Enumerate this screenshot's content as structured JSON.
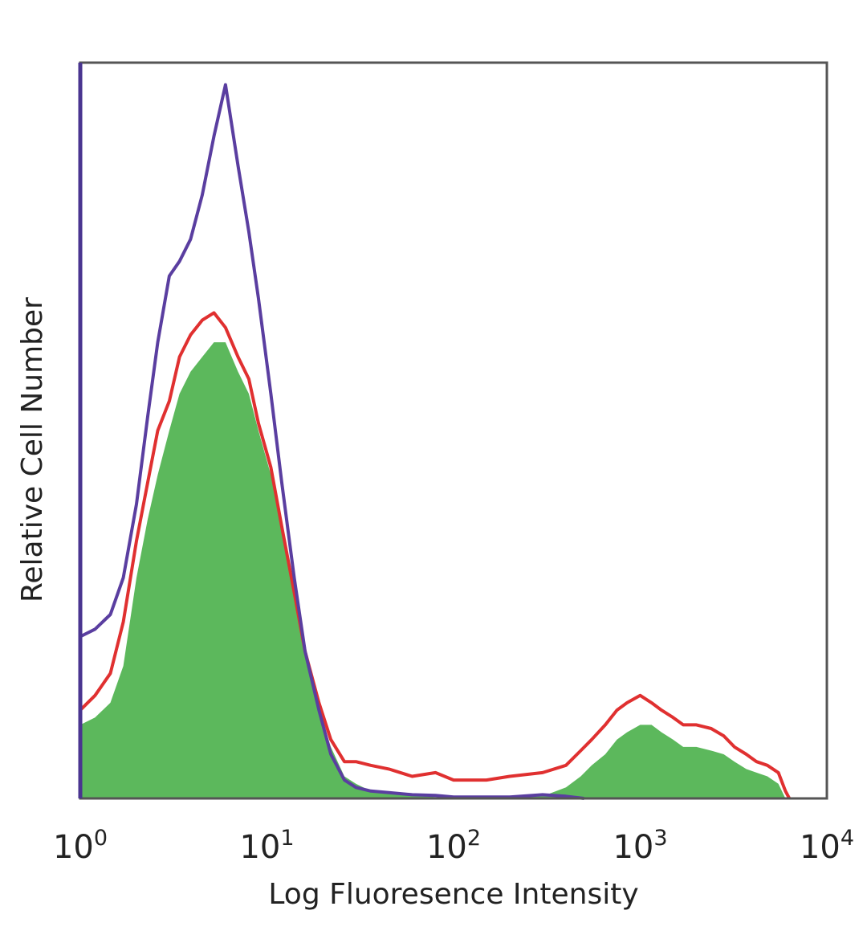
{
  "chart_data": {
    "type": "area",
    "xlabel": "Log Fluoresence Intensity",
    "ylabel": "Relative Cell Number",
    "xscale": "log",
    "xlim": [
      1,
      10000
    ],
    "ylim": [
      0,
      100
    ],
    "x_ticks": [
      {
        "value": 1,
        "base": "10",
        "exp": "0"
      },
      {
        "value": 10,
        "base": "10",
        "exp": "1"
      },
      {
        "value": 100,
        "base": "10",
        "exp": "2"
      },
      {
        "value": 1000,
        "base": "10",
        "exp": "3"
      },
      {
        "value": 10000,
        "base": "10",
        "exp": "4"
      }
    ],
    "grid": false,
    "legend": "none",
    "series": [
      {
        "role": "filled",
        "color": "#5cb85c",
        "points": [
          [
            1.0,
            10
          ],
          [
            1.2,
            11
          ],
          [
            1.45,
            13
          ],
          [
            1.7,
            18
          ],
          [
            2.0,
            30
          ],
          [
            2.3,
            38
          ],
          [
            2.6,
            44
          ],
          [
            3.0,
            50
          ],
          [
            3.4,
            55
          ],
          [
            3.9,
            58
          ],
          [
            4.5,
            60
          ],
          [
            5.2,
            62
          ],
          [
            6.0,
            62
          ],
          [
            7.0,
            58
          ],
          [
            8.0,
            55
          ],
          [
            9.0,
            50
          ],
          [
            10.5,
            44
          ],
          [
            12.0,
            36
          ],
          [
            14.0,
            28
          ],
          [
            16.0,
            20
          ],
          [
            19.0,
            12
          ],
          [
            22.0,
            7
          ],
          [
            26.0,
            3
          ],
          [
            30.0,
            2
          ],
          [
            36.0,
            1
          ],
          [
            45.0,
            0.7
          ],
          [
            60.0,
            0.4
          ],
          [
            80.0,
            0.2
          ],
          [
            100.0,
            0.1
          ],
          [
            200.0,
            0.1
          ],
          [
            300.0,
            0.3
          ],
          [
            400.0,
            1.5
          ],
          [
            480.0,
            3
          ],
          [
            550.0,
            4.5
          ],
          [
            650.0,
            6
          ],
          [
            750.0,
            8
          ],
          [
            850.0,
            9
          ],
          [
            1000.0,
            10
          ],
          [
            1150.0,
            10
          ],
          [
            1300.0,
            9
          ],
          [
            1500.0,
            8
          ],
          [
            1700.0,
            7
          ],
          [
            2000.0,
            7
          ],
          [
            2400.0,
            6.5
          ],
          [
            2800.0,
            6
          ],
          [
            3200.0,
            5
          ],
          [
            3700.0,
            4
          ],
          [
            4200.0,
            3.5
          ],
          [
            4800.0,
            3
          ],
          [
            5500.0,
            2
          ],
          [
            6000.0,
            0
          ]
        ]
      },
      {
        "role": "outline",
        "color": "#e03030",
        "points": [
          [
            1.0,
            12
          ],
          [
            1.2,
            14
          ],
          [
            1.45,
            17
          ],
          [
            1.7,
            24
          ],
          [
            2.0,
            35
          ],
          [
            2.3,
            43
          ],
          [
            2.6,
            50
          ],
          [
            3.0,
            54
          ],
          [
            3.4,
            60
          ],
          [
            3.9,
            63
          ],
          [
            4.5,
            65
          ],
          [
            5.2,
            66
          ],
          [
            6.0,
            64
          ],
          [
            7.0,
            60
          ],
          [
            8.0,
            57
          ],
          [
            9.0,
            51
          ],
          [
            10.5,
            45
          ],
          [
            12.0,
            37
          ],
          [
            14.0,
            28
          ],
          [
            16.0,
            20
          ],
          [
            19.0,
            13
          ],
          [
            22.0,
            8
          ],
          [
            26.0,
            5
          ],
          [
            30.0,
            5
          ],
          [
            36.0,
            4.5
          ],
          [
            45.0,
            4
          ],
          [
            60.0,
            3
          ],
          [
            80.0,
            3.5
          ],
          [
            100.0,
            2.5
          ],
          [
            150.0,
            2.5
          ],
          [
            200.0,
            3
          ],
          [
            300.0,
            3.5
          ],
          [
            400.0,
            4.5
          ],
          [
            480.0,
            6.5
          ],
          [
            550.0,
            8
          ],
          [
            650.0,
            10
          ],
          [
            750.0,
            12
          ],
          [
            850.0,
            13
          ],
          [
            1000.0,
            14
          ],
          [
            1150.0,
            13
          ],
          [
            1300.0,
            12
          ],
          [
            1500.0,
            11
          ],
          [
            1700.0,
            10
          ],
          [
            2000.0,
            10
          ],
          [
            2400.0,
            9.5
          ],
          [
            2800.0,
            8.5
          ],
          [
            3200.0,
            7
          ],
          [
            3700.0,
            6
          ],
          [
            4200.0,
            5
          ],
          [
            4800.0,
            4.5
          ],
          [
            5500.0,
            3.5
          ],
          [
            6000.0,
            1
          ],
          [
            6300.0,
            0
          ]
        ]
      },
      {
        "role": "outline",
        "color": "#5a3ea0",
        "points": [
          [
            1.0,
            22
          ],
          [
            1.2,
            23
          ],
          [
            1.45,
            25
          ],
          [
            1.7,
            30
          ],
          [
            2.0,
            40
          ],
          [
            2.3,
            52
          ],
          [
            2.6,
            62
          ],
          [
            3.0,
            71
          ],
          [
            3.4,
            73
          ],
          [
            3.9,
            76
          ],
          [
            4.5,
            82
          ],
          [
            5.2,
            90
          ],
          [
            6.0,
            97
          ],
          [
            7.0,
            86
          ],
          [
            8.0,
            77
          ],
          [
            9.0,
            68
          ],
          [
            10.5,
            55
          ],
          [
            12.0,
            43
          ],
          [
            14.0,
            30
          ],
          [
            16.0,
            20
          ],
          [
            19.0,
            12
          ],
          [
            22.0,
            6
          ],
          [
            26.0,
            2.5
          ],
          [
            30.0,
            1.5
          ],
          [
            36.0,
            1
          ],
          [
            45.0,
            0.8
          ],
          [
            60.0,
            0.5
          ],
          [
            80.0,
            0.4
          ],
          [
            100.0,
            0.2
          ],
          [
            200.0,
            0.2
          ],
          [
            300.0,
            0.5
          ],
          [
            400.0,
            0.3
          ],
          [
            500.0,
            0
          ]
        ]
      }
    ]
  }
}
